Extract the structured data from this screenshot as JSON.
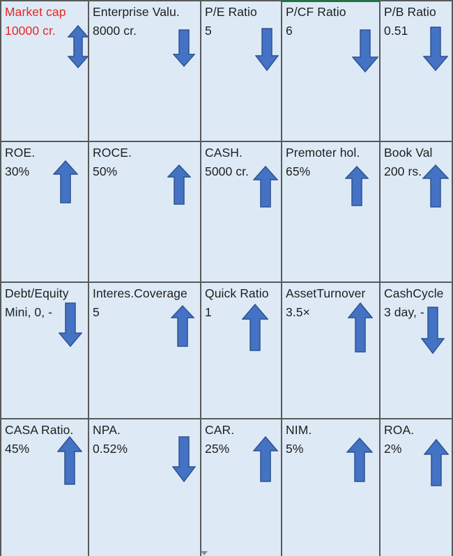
{
  "theme": {
    "cell_bg": "#ddeaf6",
    "arrow_fill": "#4472c4",
    "arrow_stroke": "#2f528f",
    "grid_line": "#595959",
    "highlight_text": "#e8261e"
  },
  "rows": [
    [
      {
        "label": "Market cap",
        "value": "10000 cr.",
        "arrow": "both",
        "highlight": true
      },
      {
        "label": "Enterprise Valu.",
        "value": "8000 cr.",
        "arrow": "down"
      },
      {
        "label": "P/E Ratio",
        "value": "5",
        "arrow": "down"
      },
      {
        "label": "P/CF Ratio",
        "value": "6",
        "arrow": "down"
      },
      {
        "label": "P/B Ratio",
        "value": "0.51",
        "arrow": "down"
      }
    ],
    [
      {
        "label": "ROE.",
        "value": "30%",
        "arrow": "up"
      },
      {
        "label": "ROCE.",
        "value": "50%",
        "arrow": "up"
      },
      {
        "label": "CASH.",
        "value": "5000 cr.",
        "arrow": "up"
      },
      {
        "label": "Premoter hol.",
        "value": "65%",
        "arrow": "up"
      },
      {
        "label": "Book Val",
        "value": "200 rs.",
        "arrow": "up"
      }
    ],
    [
      {
        "label": "Debt/Equity",
        "value": "Mini, 0, -",
        "arrow": "down"
      },
      {
        "label": "Interes.Coverage",
        "value": "5",
        "arrow": "up"
      },
      {
        "label": "Quick Ratio",
        "value": "1",
        "arrow": "up"
      },
      {
        "label": "AssetTurnover",
        "value": "3.5×",
        "arrow": "up"
      },
      {
        "label": "CashCycle",
        "value": "3 day, -",
        "arrow": "down"
      }
    ],
    [
      {
        "label": "CASA Ratio.",
        "value": "45%",
        "arrow": "up"
      },
      {
        "label": "NPA.",
        "value": "0.52%",
        "arrow": "down"
      },
      {
        "label": "CAR.",
        "value": "25%",
        "arrow": "up"
      },
      {
        "label": "NIM.",
        "value": "5%",
        "arrow": "up"
      },
      {
        "label": "ROA.",
        "value": "2%",
        "arrow": "up"
      }
    ]
  ]
}
